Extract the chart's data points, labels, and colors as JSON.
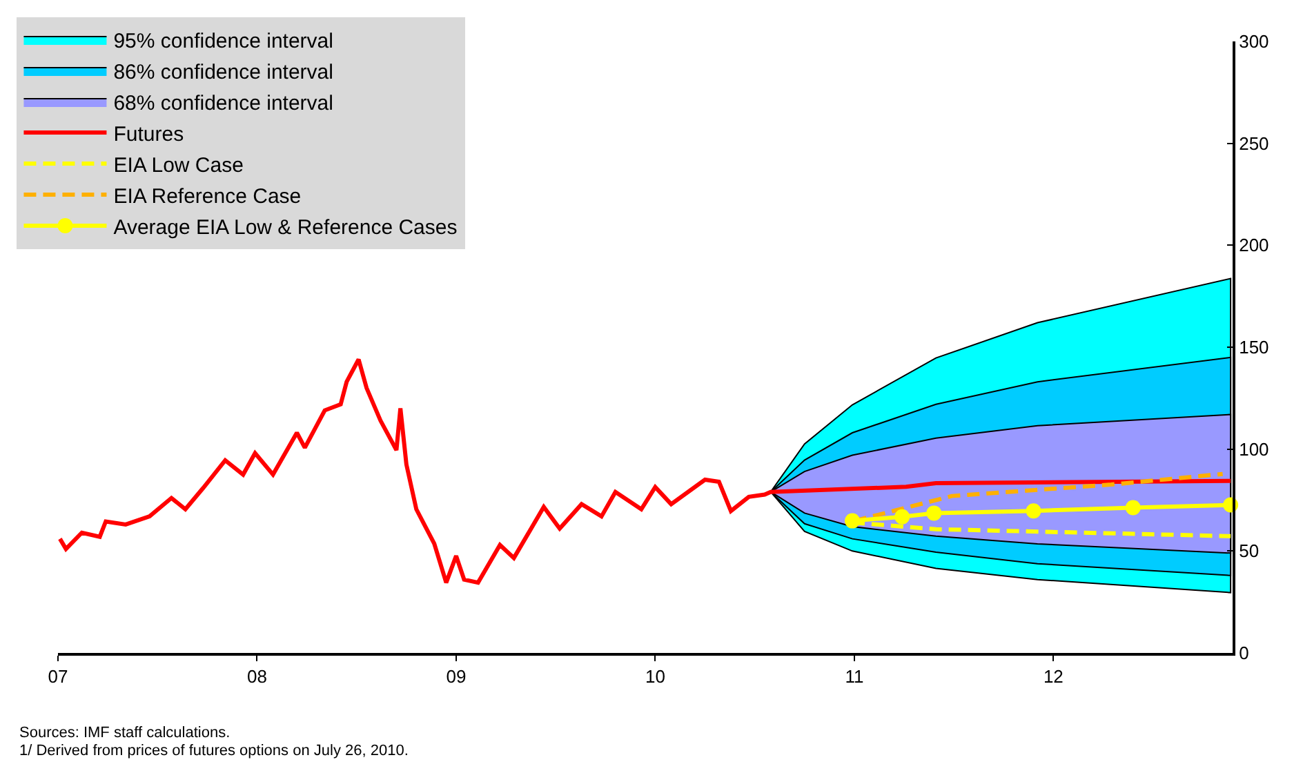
{
  "chart_data": {
    "type": "line",
    "xlim": [
      2007,
      2012.9
    ],
    "xticks": [
      {
        "value": 2007,
        "label": "07"
      },
      {
        "value": 2008,
        "label": "08"
      },
      {
        "value": 2009,
        "label": "09"
      },
      {
        "value": 2010,
        "label": "10"
      },
      {
        "value": 2011,
        "label": "11"
      },
      {
        "value": 2012,
        "label": "12"
      }
    ],
    "ylim": [
      0,
      300
    ],
    "yticks": [
      0,
      50,
      100,
      150,
      200,
      250,
      300
    ],
    "grid": false,
    "legend": "top left",
    "series": [
      {
        "name": "95% confidence interval",
        "type": "area",
        "color": "#00ffff",
        "x": [
          2010.58,
          2010.75,
          2010.99,
          2011.41,
          2011.92,
          2012.89
        ],
        "values": [
          null,
          null,
          null,
          null,
          null,
          null
        ],
        "lower": [
          79,
          59.6,
          50,
          41.5,
          36,
          29.6
        ],
        "upper": [
          79,
          102.5,
          121.7,
          144.7,
          162,
          183.7
        ]
      },
      {
        "name": "86% confidence interval",
        "type": "area",
        "color": "#00ccff",
        "x": [
          2010.58,
          2010.75,
          2010.99,
          2011.41,
          2011.92,
          2012.89
        ],
        "values": [
          null,
          null,
          null,
          null,
          null,
          null
        ],
        "lower": [
          79,
          63.4,
          56,
          49.4,
          43.8,
          38
        ],
        "upper": [
          79,
          94.6,
          108,
          122,
          133,
          145
        ]
      },
      {
        "name": "68% confidence interval",
        "type": "area",
        "color": "#9999ff",
        "x": [
          2010.58,
          2010.75,
          2010.99,
          2011.41,
          2011.92,
          2012.89
        ],
        "values": [
          null,
          null,
          null,
          null,
          null,
          null
        ],
        "lower": [
          79,
          68.6,
          62,
          57.3,
          53.5,
          49
        ],
        "upper": [
          79,
          89,
          97,
          105.4,
          111.5,
          117
        ]
      },
      {
        "name": "Futures",
        "color": "#ff0000",
        "line_style": "solid",
        "x": [
          2007.01,
          2007.04,
          2007.12,
          2007.21,
          2007.24,
          2007.34,
          2007.46,
          2007.57,
          2007.64,
          2007.73,
          2007.84,
          2007.93,
          2007.99,
          2008.08,
          2008.2,
          2008.24,
          2008.34,
          2008.42,
          2008.45,
          2008.51,
          2008.55,
          2008.62,
          2008.7,
          2008.72,
          2008.75,
          2008.8,
          2008.89,
          2008.95,
          2009.0,
          2009.04,
          2009.11,
          2009.22,
          2009.29,
          2009.44,
          2009.52,
          2009.63,
          2009.73,
          2009.8,
          2009.93,
          2010.0,
          2010.08,
          2010.25,
          2010.32,
          2010.38,
          2010.47,
          2010.55,
          2010.58,
          2011.26,
          2011.41,
          2012.89
        ],
        "values": [
          56,
          51,
          59,
          57,
          64.5,
          63,
          67,
          76,
          70.5,
          81,
          94.5,
          87.5,
          98,
          87.5,
          108,
          100.7,
          119,
          122,
          133,
          144,
          130,
          114,
          99.5,
          120,
          92.5,
          70.5,
          53.6,
          34.5,
          47.6,
          36,
          34.5,
          53,
          46.6,
          71.6,
          61,
          73,
          67,
          79,
          70.5,
          81.4,
          73,
          85,
          84,
          69.6,
          76.6,
          77.7,
          79,
          81.5,
          83.3,
          84.4
        ]
      },
      {
        "name": "EIA Low Case",
        "color": "#ffff00",
        "line_style": "dashed",
        "x": [
          2010.99,
          2011.41,
          2012.89
        ],
        "values": [
          64,
          60.7,
          57.3
        ]
      },
      {
        "name": "EIA Reference Case",
        "color": "#ffb000",
        "line_style": "dashed",
        "x": [
          2011.0,
          2011.21,
          2011.49,
          2012.29,
          2012.85
        ],
        "values": [
          64.8,
          70,
          77,
          82.6,
          87.8
        ]
      },
      {
        "name": "Average EIA Low & Reference Cases",
        "color": "#ffff00",
        "line_style": "solid",
        "marker": "circle",
        "x": [
          2010.99,
          2011.24,
          2011.4,
          2011.9,
          2012.4,
          2012.89
        ],
        "values": [
          64.8,
          66.8,
          68.6,
          69.7,
          71.3,
          72.6
        ]
      }
    ],
    "annotations": [
      "Sources: IMF staff calculations.",
      "1/ Derived from prices of futures options on July 26, 2010."
    ]
  }
}
